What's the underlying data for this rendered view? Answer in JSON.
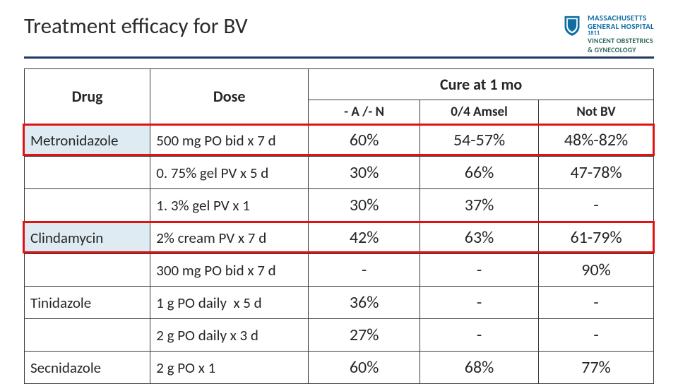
{
  "title": "Treatment efficacy for BV",
  "logo": {
    "line1": "MASSACHUSETTS",
    "line2": "GENERAL HOSPITAL",
    "line3": "1811",
    "dept1": "VINCENT OBSTETRICS",
    "dept2": "& GYNECOLOGY",
    "shield_fill": "#0f6da4"
  },
  "colors": {
    "rule": "#1f3864",
    "border": "#3a3a3a",
    "highlight": "#e11212",
    "drug_tint": "#deebf2"
  },
  "headers": {
    "drug": "Drug",
    "dose": "Dose",
    "cure": "Cure at 1 mo",
    "sub_a": "- A /- N",
    "sub_b": "0/4 Amsel",
    "sub_c": "Not BV"
  },
  "rows": [
    {
      "drug": "Metronidazole",
      "dose": "500 mg PO bid x 7 d",
      "a": "60%",
      "b": "54-57%",
      "c": "48%-82%",
      "tint": true,
      "hl": true
    },
    {
      "drug": "",
      "dose": "0. 75% gel PV x 5 d",
      "a": "30%",
      "b": "66%",
      "c": "47-78%",
      "tint": false,
      "hl": false
    },
    {
      "drug": "",
      "dose": "1. 3% gel PV x 1",
      "a": "30%",
      "b": "37%",
      "c": "-",
      "tint": false,
      "hl": false
    },
    {
      "drug": "Clindamycin",
      "dose": "2% cream PV x 7 d",
      "a": "42%",
      "b": "63%",
      "c": "61-79%",
      "tint": true,
      "hl": true
    },
    {
      "drug": "",
      "dose": "300 mg PO bid x 7 d",
      "a": "-",
      "b": "-",
      "c": "90%",
      "tint": false,
      "hl": false
    },
    {
      "drug": "Tinidazole",
      "dose": "1 g PO daily  x 5 d",
      "a": "36%",
      "b": "-",
      "c": "-",
      "tint": false,
      "hl": false
    },
    {
      "drug": "",
      "dose": "2 g PO daily x 3 d",
      "a": "27%",
      "b": "-",
      "c": "-",
      "tint": false,
      "hl": false
    },
    {
      "drug": "Secnidazole",
      "dose": "2 g PO x 1",
      "a": "60%",
      "b": "68%",
      "c": "77%",
      "tint": false,
      "hl": false
    }
  ]
}
